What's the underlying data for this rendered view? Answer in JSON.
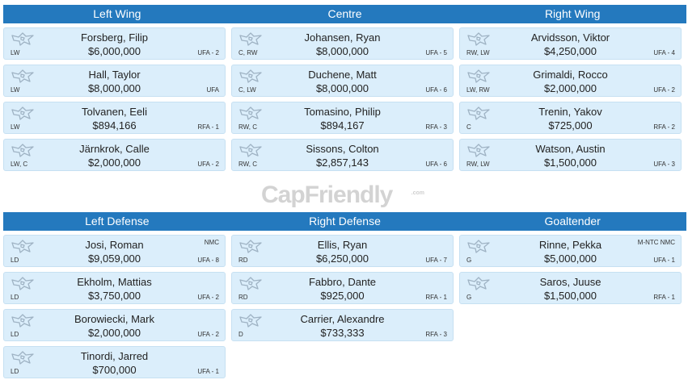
{
  "forwards": {
    "columns": [
      "Left Wing",
      "Centre",
      "Right Wing"
    ],
    "players": [
      [
        {
          "name": "Forsberg, Filip",
          "salary": "$6,000,000",
          "pos": "LW",
          "status": "UFA - 2",
          "clause": ""
        },
        {
          "name": "Hall, Taylor",
          "salary": "$8,000,000",
          "pos": "LW",
          "status": "UFA",
          "clause": ""
        },
        {
          "name": "Tolvanen, Eeli",
          "salary": "$894,166",
          "pos": "LW",
          "status": "RFA - 1",
          "clause": ""
        },
        {
          "name": "Järnkrok, Calle",
          "salary": "$2,000,000",
          "pos": "LW, C",
          "status": "UFA - 2",
          "clause": ""
        }
      ],
      [
        {
          "name": "Johansen, Ryan",
          "salary": "$8,000,000",
          "pos": "C, RW",
          "status": "UFA - 5",
          "clause": ""
        },
        {
          "name": "Duchene, Matt",
          "salary": "$8,000,000",
          "pos": "C, LW",
          "status": "UFA - 6",
          "clause": ""
        },
        {
          "name": "Tomasino, Philip",
          "salary": "$894,167",
          "pos": "RW, C",
          "status": "RFA - 3",
          "clause": ""
        },
        {
          "name": "Sissons, Colton",
          "salary": "$2,857,143",
          "pos": "RW, C",
          "status": "UFA - 6",
          "clause": ""
        }
      ],
      [
        {
          "name": "Arvidsson, Viktor",
          "salary": "$4,250,000",
          "pos": "RW, LW",
          "status": "UFA - 4",
          "clause": ""
        },
        {
          "name": "Grimaldi, Rocco",
          "salary": "$2,000,000",
          "pos": "LW, RW",
          "status": "UFA - 2",
          "clause": ""
        },
        {
          "name": "Trenin, Yakov",
          "salary": "$725,000",
          "pos": "C",
          "status": "RFA - 2",
          "clause": ""
        },
        {
          "name": "Watson, Austin",
          "salary": "$1,500,000",
          "pos": "RW, LW",
          "status": "UFA - 3",
          "clause": ""
        }
      ]
    ]
  },
  "watermark": {
    "text": "CapFriendly",
    "sub": ".com"
  },
  "defense": {
    "columns": [
      "Left Defense",
      "Right Defense",
      "Goaltender"
    ],
    "players": [
      [
        {
          "name": "Josi, Roman",
          "salary": "$9,059,000",
          "pos": "LD",
          "status": "UFA - 8",
          "clause": "NMC"
        },
        {
          "name": "Ekholm, Mattias",
          "salary": "$3,750,000",
          "pos": "LD",
          "status": "UFA - 2",
          "clause": ""
        },
        {
          "name": "Borowiecki, Mark",
          "salary": "$2,000,000",
          "pos": "LD",
          "status": "UFA - 2",
          "clause": ""
        },
        {
          "name": "Tinordi, Jarred",
          "salary": "$700,000",
          "pos": "LD",
          "status": "UFA - 1",
          "clause": ""
        }
      ],
      [
        {
          "name": "Ellis, Ryan",
          "salary": "$6,250,000",
          "pos": "RD",
          "status": "UFA - 7",
          "clause": ""
        },
        {
          "name": "Fabbro, Dante",
          "salary": "$925,000",
          "pos": "RD",
          "status": "RFA - 1",
          "clause": ""
        },
        {
          "name": "Carrier, Alexandre",
          "salary": "$733,333",
          "pos": "D",
          "status": "RFA - 3",
          "clause": ""
        }
      ],
      [
        {
          "name": "Rinne, Pekka",
          "salary": "$5,000,000",
          "pos": "G",
          "status": "UFA - 1",
          "clause": "M-NTC NMC"
        },
        {
          "name": "Saros, Juuse",
          "salary": "$1,500,000",
          "pos": "G",
          "status": "RFA - 1",
          "clause": ""
        }
      ]
    ]
  },
  "colors": {
    "header": "#2479be",
    "card": "#dbeefb",
    "card_border": "#c6e0f2"
  },
  "icons": {
    "team_logo": "predators-logo-icon"
  }
}
